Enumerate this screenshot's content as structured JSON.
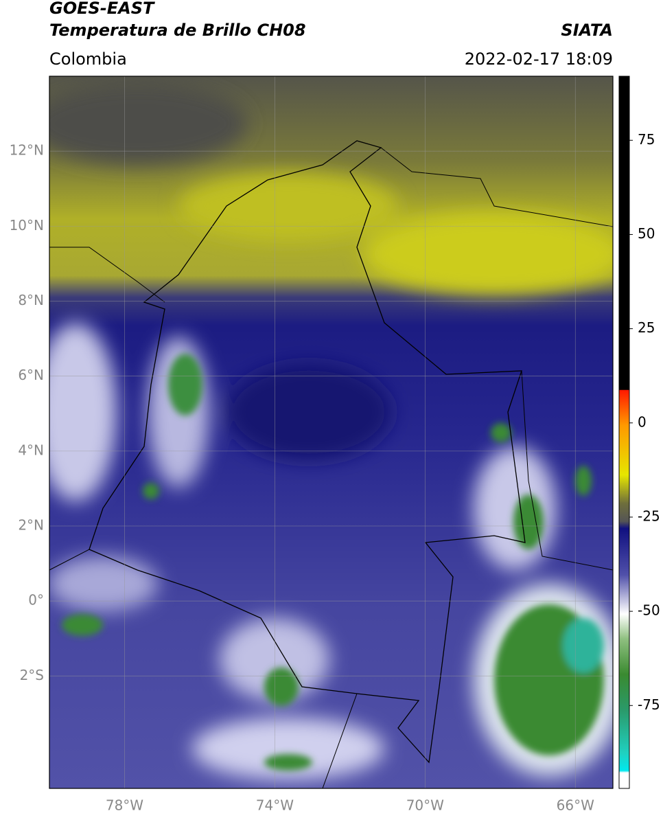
{
  "header": {
    "satellite": "GOES-EAST",
    "product": "Temperatura de Brillo CH08",
    "source": "SIATA",
    "region": "Colombia",
    "datetime": "2022-02-17 18:09"
  },
  "map": {
    "lon_range": [
      -80,
      -65
    ],
    "lat_range": [
      -5,
      14
    ],
    "lat_ticks": [
      {
        "value": 12,
        "label": "12°N"
      },
      {
        "value": 10,
        "label": "10°N"
      },
      {
        "value": 8,
        "label": "8°N"
      },
      {
        "value": 6,
        "label": "6°N"
      },
      {
        "value": 4,
        "label": "4°N"
      },
      {
        "value": 2,
        "label": "2°N"
      },
      {
        "value": 0,
        "label": "0°"
      },
      {
        "value": -2,
        "label": "2°S"
      }
    ],
    "lon_ticks": [
      {
        "value": -78,
        "label": "78°W"
      },
      {
        "value": -74,
        "label": "74°W"
      },
      {
        "value": -70,
        "label": "70°W"
      },
      {
        "value": -66,
        "label": "66°W"
      }
    ],
    "colorbar": {
      "range": [
        -97,
        92
      ],
      "ticks": [
        75,
        50,
        25,
        0,
        -25,
        -50,
        -75
      ]
    }
  }
}
